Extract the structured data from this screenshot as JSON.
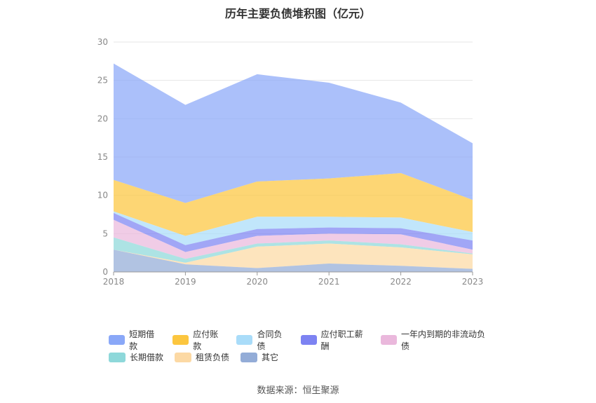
{
  "chart_data": {
    "type": "area",
    "title": "历年主要负债堆积图（亿元）",
    "stacked": true,
    "categories": [
      "2018",
      "2019",
      "2020",
      "2021",
      "2022",
      "2023"
    ],
    "ylim": [
      0,
      30
    ],
    "yticks": [
      0,
      5,
      10,
      15,
      20,
      25,
      30
    ],
    "grid": true,
    "legend_position": "bottom",
    "series": [
      {
        "name": "短期借款",
        "color": "#8aa8f8",
        "values": [
          15.2,
          12.8,
          14.0,
          12.5,
          9.2,
          7.4
        ]
      },
      {
        "name": "应付账款",
        "color": "#fcc63f",
        "values": [
          4.1,
          4.3,
          4.6,
          5.0,
          5.8,
          4.2
        ]
      },
      {
        "name": "合同负债",
        "color": "#a9dcf9",
        "values": [
          0.2,
          1.2,
          1.6,
          1.4,
          1.4,
          1.1
        ]
      },
      {
        "name": "应付职工薪酬",
        "color": "#7d83f2",
        "values": [
          0.9,
          0.9,
          0.9,
          0.8,
          0.8,
          1.2
        ]
      },
      {
        "name": "一年内到期的非流动负债",
        "color": "#eab8dc",
        "values": [
          2.3,
          0.9,
          1.0,
          0.9,
          1.3,
          0.5
        ]
      },
      {
        "name": "长期借款",
        "color": "#8ed8da",
        "values": [
          1.6,
          0.5,
          0.4,
          0.4,
          0.4,
          0.1
        ]
      },
      {
        "name": "租赁负债",
        "color": "#fcd9a4",
        "values": [
          0.0,
          0.2,
          2.8,
          2.6,
          2.4,
          1.9
        ]
      },
      {
        "name": "其它",
        "color": "#93acd7",
        "values": [
          2.9,
          1.0,
          0.5,
          1.1,
          0.8,
          0.4
        ]
      }
    ]
  },
  "source_text": "数据来源：恒生聚源"
}
